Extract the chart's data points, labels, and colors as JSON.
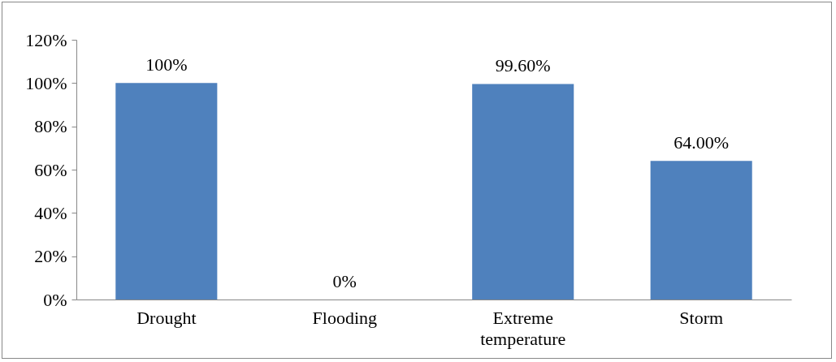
{
  "chart_data": {
    "type": "bar",
    "categories": [
      "Drought",
      "Flooding",
      "Extreme temperature",
      "Storm"
    ],
    "values": [
      100,
      0,
      99.6,
      64
    ],
    "color": "#4f81bd",
    "value_labels": [
      "100%",
      "0%",
      "99.60%",
      "64.00%"
    ],
    "ylim": [
      0,
      120
    ],
    "yticks": [
      {
        "value": 0,
        "label": "0%"
      },
      {
        "value": 20,
        "label": "20%"
      },
      {
        "value": 40,
        "label": "40%"
      },
      {
        "value": 60,
        "label": "60%"
      },
      {
        "value": 80,
        "label": "80%"
      },
      {
        "value": 100,
        "label": "100%"
      },
      {
        "value": 120,
        "label": "120%"
      }
    ],
    "grid": false
  }
}
